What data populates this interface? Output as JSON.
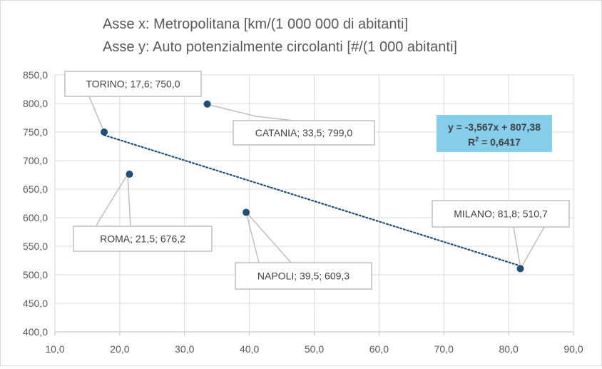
{
  "chart_data": {
    "type": "scatter",
    "title_lines": [
      "Asse x: Metropolitana [km/(1 000 000 di abitanti]",
      "Asse y: Auto potenzialmente circolanti [#/(1 000 abitanti]"
    ],
    "xlabel": "",
    "ylabel": "",
    "xlim": [
      10,
      90
    ],
    "ylim": [
      400,
      850
    ],
    "x_ticks": [
      "10,0",
      "20,0",
      "30,0",
      "40,0",
      "50,0",
      "60,0",
      "70,0",
      "80,0",
      "90,0"
    ],
    "y_ticks": [
      "400,0",
      "450,0",
      "500,0",
      "550,0",
      "600,0",
      "650,0",
      "700,0",
      "750,0",
      "800,0",
      "850,0"
    ],
    "grid": true,
    "marker_color": "#1f4e79",
    "points": [
      {
        "city": "TORINO",
        "x": 17.6,
        "y": 750.0,
        "label": "TORINO; 17,6; 750,0"
      },
      {
        "city": "CATANIA",
        "x": 33.5,
        "y": 799.0,
        "label": "CATANIA; 33,5; 799,0"
      },
      {
        "city": "ROMA",
        "x": 21.5,
        "y": 676.2,
        "label": "ROMA; 21,5; 676,2"
      },
      {
        "city": "NAPOLI",
        "x": 39.5,
        "y": 609.3,
        "label": "NAPOLI; 39,5; 609,3"
      },
      {
        "city": "MILANO",
        "x": 81.8,
        "y": 510.7,
        "label": "MILANO; 81,8; 510,7"
      }
    ],
    "trendline": {
      "slope": -3.567,
      "intercept": 807.38,
      "color": "#1f4e79",
      "style": "dotted",
      "equation_parts": [
        "y = -3,567x + 807,38",
        "R",
        "2",
        " = 0,6417"
      ],
      "box_color": "#87ceeb"
    }
  }
}
